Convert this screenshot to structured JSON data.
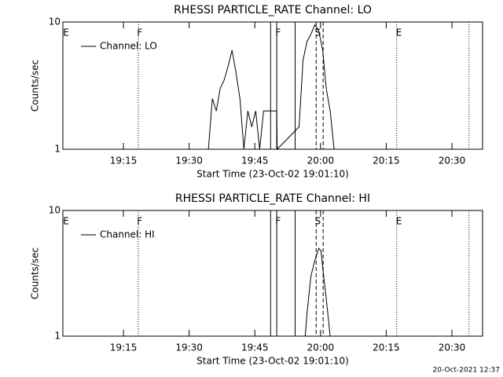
{
  "chart_data": [
    {
      "type": "line",
      "title": "RHESSI PARTICLE_RATE Channel: LO",
      "xlabel": "Start Time (23-Oct-02 19:01:10)",
      "ylabel": "Counts/sec",
      "yscale": "log",
      "ylim": [
        1,
        10
      ],
      "yticks": [
        1,
        10
      ],
      "xlim": [
        1.17,
        97
      ],
      "xticks": [
        {
          "value": 15,
          "label": "19:15"
        },
        {
          "value": 30,
          "label": "19:30"
        },
        {
          "value": 45,
          "label": "19:45"
        },
        {
          "value": 60,
          "label": "20:00"
        },
        {
          "value": 75,
          "label": "20:15"
        },
        {
          "value": 90,
          "label": "20:30"
        }
      ],
      "x": [
        1.17,
        34.4,
        35.3,
        36.2,
        37.1,
        38.0,
        38.9,
        39.8,
        40.7,
        41.6,
        42.5,
        43.4,
        44.3,
        45.2,
        46.1,
        47.0,
        47.9,
        50.0,
        50.1,
        55.1,
        56.0,
        56.9,
        57.8,
        58.7,
        59.6,
        60.5,
        61.3,
        62.2,
        63.1,
        97
      ],
      "series": [
        {
          "name": "Channel: LO",
          "color": "#000000",
          "values": [
            1,
            1,
            2.5,
            2.0,
            3.0,
            3.5,
            4.5,
            6.0,
            4.0,
            2.5,
            1.0,
            2.0,
            1.5,
            2.0,
            1.0,
            2.0,
            2.0,
            2.0,
            1,
            1.5,
            5.0,
            7.0,
            8.0,
            9.5,
            8.5,
            6.0,
            3.0,
            2.0,
            1,
            1
          ]
        }
      ],
      "flag_lines": [
        {
          "x": 18.4,
          "style": "dotted"
        },
        {
          "x": 48.6,
          "style": "solid"
        },
        {
          "x": 50.0,
          "style": "solid"
        },
        {
          "x": 54.2,
          "style": "solid"
        },
        {
          "x": 59.0,
          "style": "dashed"
        },
        {
          "x": 60.6,
          "style": "dashed"
        },
        {
          "x": 77.4,
          "style": "dotted"
        },
        {
          "x": 93.9,
          "style": "dotted"
        }
      ],
      "flags": [
        {
          "x": 1.9,
          "label": "E"
        },
        {
          "x": 18.7,
          "label": "F"
        },
        {
          "x": 50.3,
          "label": "F"
        },
        {
          "x": 59.4,
          "label": "S"
        },
        {
          "x": 77.9,
          "label": "E"
        }
      ]
    },
    {
      "type": "line",
      "title": "RHESSI PARTICLE_RATE Channel: HI",
      "xlabel": "Start Time (23-Oct-02 19:01:10)",
      "ylabel": "Counts/sec",
      "yscale": "log",
      "ylim": [
        1,
        10
      ],
      "yticks": [
        1,
        10
      ],
      "xlim": [
        1.17,
        97
      ],
      "xticks": [
        {
          "value": 15,
          "label": "19:15"
        },
        {
          "value": 30,
          "label": "19:30"
        },
        {
          "value": 45,
          "label": "19:45"
        },
        {
          "value": 60,
          "label": "20:00"
        },
        {
          "value": 75,
          "label": "20:15"
        },
        {
          "value": 90,
          "label": "20:30"
        }
      ],
      "x": [
        1.17,
        56.5,
        56.9,
        57.8,
        58.7,
        59.6,
        60.1,
        60.5,
        61.3,
        62.2,
        97
      ],
      "series": [
        {
          "name": "Channel: HI",
          "color": "#000000",
          "values": [
            1,
            1,
            1.5,
            3.0,
            4.0,
            5.0,
            4.8,
            3.5,
            2.0,
            1,
            1
          ]
        }
      ],
      "flag_lines": [
        {
          "x": 18.4,
          "style": "dotted"
        },
        {
          "x": 48.6,
          "style": "solid"
        },
        {
          "x": 50.0,
          "style": "solid"
        },
        {
          "x": 54.2,
          "style": "solid"
        },
        {
          "x": 59.0,
          "style": "dashed"
        },
        {
          "x": 60.6,
          "style": "dashed"
        },
        {
          "x": 77.4,
          "style": "dotted"
        },
        {
          "x": 93.9,
          "style": "dotted"
        }
      ],
      "flags": [
        {
          "x": 1.9,
          "label": "E"
        },
        {
          "x": 18.7,
          "label": "F"
        },
        {
          "x": 50.3,
          "label": "F"
        },
        {
          "x": 59.4,
          "label": "S"
        },
        {
          "x": 77.9,
          "label": "E"
        }
      ]
    }
  ],
  "timestamp": "20-Oct-2021 12:37"
}
